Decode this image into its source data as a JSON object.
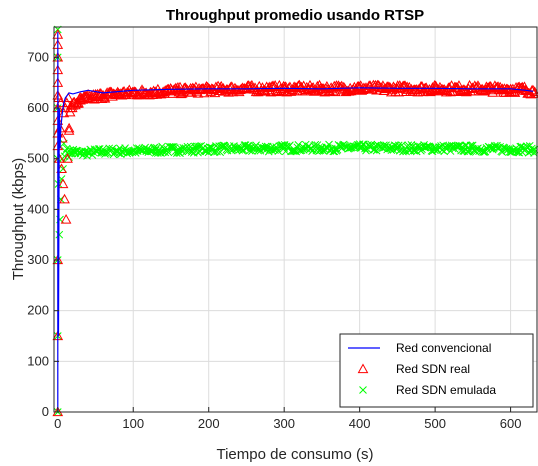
{
  "chart_data": {
    "type": "line",
    "title": "Throughput promedio usando RTSP",
    "xlabel": "Tiempo de consumo (s)",
    "ylabel": "Throughput (kbps)",
    "xlim": [
      -5,
      635
    ],
    "ylim": [
      0,
      760
    ],
    "xticks": [
      0,
      100,
      200,
      300,
      400,
      500,
      600
    ],
    "yticks": [
      0,
      100,
      200,
      300,
      400,
      500,
      600,
      700
    ],
    "grid": true,
    "legend_position": "bottom-right",
    "series": [
      {
        "name": "Red convencional",
        "color": "#0000ff",
        "marker": "line",
        "points": [
          [
            0,
            0
          ],
          [
            0,
            750
          ],
          [
            1,
            300
          ],
          [
            1,
            150
          ],
          [
            2,
            600
          ],
          [
            3,
            520
          ],
          [
            4,
            560
          ],
          [
            6,
            590
          ],
          [
            8,
            610
          ],
          [
            10,
            620
          ],
          [
            15,
            630
          ],
          [
            20,
            628
          ],
          [
            30,
            632
          ],
          [
            40,
            635
          ],
          [
            60,
            630
          ],
          [
            100,
            635
          ],
          [
            150,
            637
          ],
          [
            200,
            638
          ],
          [
            250,
            638
          ],
          [
            300,
            639
          ],
          [
            350,
            638
          ],
          [
            400,
            640
          ],
          [
            450,
            639
          ],
          [
            500,
            639
          ],
          [
            550,
            638
          ],
          [
            600,
            638
          ],
          [
            620,
            635
          ],
          [
            630,
            633
          ]
        ]
      },
      {
        "name": "Red SDN real",
        "color": "#ff0000",
        "marker": "triangle",
        "points": [
          [
            0,
            0
          ],
          [
            0,
            150
          ],
          [
            0,
            300
          ],
          [
            0,
            525
          ],
          [
            0,
            550
          ],
          [
            0,
            575
          ],
          [
            0,
            600
          ],
          [
            0,
            625
          ],
          [
            0,
            650
          ],
          [
            0,
            675
          ],
          [
            0,
            700
          ],
          [
            0,
            725
          ],
          [
            0,
            745
          ],
          [
            1,
            620
          ],
          [
            2,
            500
          ],
          [
            3,
            560
          ],
          [
            4,
            610
          ],
          [
            5,
            480
          ],
          [
            6,
            540
          ],
          [
            7,
            450
          ],
          [
            8,
            590
          ],
          [
            9,
            420
          ],
          [
            10,
            600
          ],
          [
            11,
            380
          ],
          [
            12,
            610
          ],
          [
            13,
            500
          ],
          [
            14,
            620
          ],
          [
            15,
            560
          ],
          [
            17,
            600
          ],
          [
            20,
            605
          ],
          [
            25,
            610
          ],
          [
            30,
            615
          ],
          [
            40,
            620
          ],
          [
            50,
            622
          ],
          [
            60,
            625
          ],
          [
            80,
            628
          ],
          [
            100,
            630
          ],
          [
            130,
            632
          ],
          [
            160,
            634
          ],
          [
            200,
            636
          ],
          [
            250,
            638
          ],
          [
            300,
            638
          ],
          [
            350,
            638
          ],
          [
            400,
            639
          ],
          [
            450,
            638
          ],
          [
            500,
            638
          ],
          [
            550,
            638
          ],
          [
            600,
            637
          ],
          [
            620,
            636
          ],
          [
            632,
            632
          ]
        ]
      },
      {
        "name": "Red SDN emulada",
        "color": "#00ff00",
        "marker": "x",
        "points": [
          [
            0,
            0
          ],
          [
            0,
            150
          ],
          [
            0,
            300
          ],
          [
            0,
            500
          ],
          [
            0,
            600
          ],
          [
            0,
            700
          ],
          [
            0,
            755
          ],
          [
            1,
            450
          ],
          [
            2,
            350
          ],
          [
            3,
            380
          ],
          [
            4,
            420
          ],
          [
            5,
            460
          ],
          [
            6,
            500
          ],
          [
            7,
            480
          ],
          [
            8,
            530
          ],
          [
            9,
            505
          ],
          [
            10,
            515
          ],
          [
            12,
            520
          ],
          [
            15,
            510
          ],
          [
            20,
            515
          ],
          [
            30,
            510
          ],
          [
            40,
            512
          ],
          [
            60,
            514
          ],
          [
            80,
            515
          ],
          [
            100,
            515
          ],
          [
            130,
            517
          ],
          [
            160,
            518
          ],
          [
            200,
            519
          ],
          [
            250,
            520
          ],
          [
            300,
            521
          ],
          [
            350,
            521
          ],
          [
            400,
            522
          ],
          [
            450,
            521
          ],
          [
            500,
            521
          ],
          [
            550,
            520
          ],
          [
            600,
            519
          ],
          [
            620,
            519
          ],
          [
            632,
            518
          ]
        ]
      }
    ]
  }
}
